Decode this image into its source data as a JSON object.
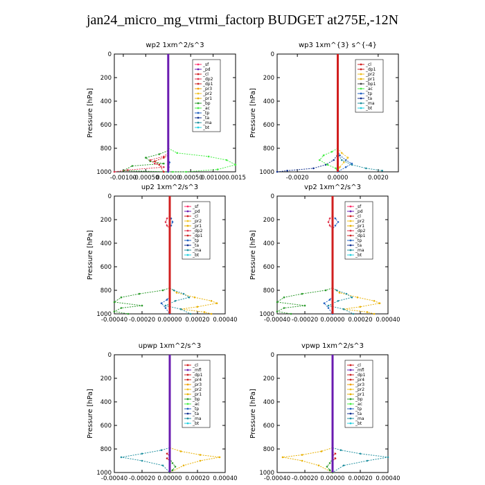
{
  "figure": {
    "title": "jan24_micro_mg_vtrmi_factorp  BUDGET at275E,-12N"
  },
  "colors": {
    "sf": "#ff2b6a",
    "pd": "#6a1bb0",
    "cl": "#d11f1f",
    "mfl": "#6a1bb0",
    "dp1": "#cc2222",
    "dp2": "#e0304a",
    "pr1": "#e8b000",
    "pr2": "#f0c020",
    "pr3": "#f0a000",
    "pr4": "#cc2222",
    "bp": "#2a9a2a",
    "ac": "#44ee44",
    "tp": "#2060c0",
    "ta": "#103090",
    "ma": "#2090a0",
    "bt": "#20d0e0"
  },
  "chart_data": [
    {
      "id": "wp2",
      "type": "line",
      "title": "wp2   1xm^2/s^3",
      "ylabel": "Pressure [hPa]",
      "xlim": [
        -0.0012,
        0.0015
      ],
      "ylim": [
        1000,
        0
      ],
      "xticks": [
        -0.001,
        -0.0005,
        0.0,
        0.0005,
        0.001,
        0.0015
      ],
      "xtick_labels": [
        "-0.00100",
        "-0.00050",
        "0.00000",
        "0.00050",
        "0.00100",
        "0.0015"
      ],
      "yticks": [
        0,
        200,
        400,
        600,
        800,
        1000
      ],
      "legend": [
        "_sf",
        "_pd",
        "_cl",
        "_dp2",
        "_dp1",
        "_pr3",
        "_pr2",
        "_pr1",
        "_bp",
        "_ac",
        "_tp",
        "_ta",
        "_ma",
        "_bt"
      ],
      "series": [
        {
          "key": "ac",
          "x": [
            0,
            0,
            0.0002,
            0.0009,
            0.0013,
            0.0015,
            0.0011,
            0.0004,
            0.0001,
            0
          ],
          "y": [
            760,
            800,
            840,
            870,
            900,
            940,
            980,
            1000,
            1000,
            1000
          ]
        },
        {
          "key": "bp",
          "x": [
            0,
            0,
            -0.0002,
            -0.0005,
            -0.0004,
            -0.0001,
            -0.0008,
            -0.001,
            0
          ],
          "y": [
            780,
            820,
            850,
            880,
            910,
            930,
            950,
            990,
            1000
          ]
        },
        {
          "key": "dp2",
          "x": [
            0,
            0,
            -0.0001,
            -0.0004,
            -0.0003,
            -0.0001,
            -0.0009,
            -0.0012
          ],
          "y": [
            800,
            840,
            870,
            900,
            930,
            960,
            985,
            1000
          ]
        },
        {
          "key": "cl",
          "x": [
            0,
            0,
            -0.0001,
            -0.0003,
            -0.0002,
            -0.0001
          ],
          "y": [
            820,
            860,
            880,
            910,
            940,
            1000
          ]
        },
        {
          "key": "tp",
          "x": [
            0,
            0,
            3e-05,
            1e-05,
            0
          ],
          "y": [
            850,
            880,
            920,
            960,
            1000
          ]
        },
        {
          "key": "pd",
          "x": [
            0,
            0,
            0,
            0
          ],
          "y": [
            0,
            500,
            800,
            1000
          ]
        }
      ]
    },
    {
      "id": "wp3",
      "type": "line",
      "title": "wp3   1xm^{3} s^{-4}",
      "ylabel": "Pressure [hPa]",
      "xlim": [
        -0.003,
        0.003
      ],
      "ylim": [
        1000,
        0
      ],
      "xticks": [
        -0.002,
        0.0,
        0.002
      ],
      "xtick_labels": [
        "-0.0020",
        "0.0000",
        "0.0020"
      ],
      "yticks": [
        0,
        200,
        400,
        600,
        800,
        1000
      ],
      "legend": [
        "_cl",
        "_dp1",
        "_pr2",
        "_pr1",
        "_bp1",
        "_ac",
        "_tp",
        "_ta",
        "_ma",
        "_bt"
      ],
      "series": [
        {
          "key": "ta",
          "x": [
            0,
            0,
            -0.0002,
            -0.0006,
            -0.0012,
            -0.0025,
            -0.003
          ],
          "y": [
            800,
            850,
            900,
            940,
            970,
            990,
            1000
          ]
        },
        {
          "key": "ma",
          "x": [
            0,
            0,
            0.0002,
            0.0007,
            0.0014,
            0.0022
          ],
          "y": [
            800,
            850,
            900,
            940,
            970,
            990
          ]
        },
        {
          "key": "ac",
          "x": [
            0,
            -0.0003,
            -0.0007,
            -0.0009,
            -0.0005,
            -0.0001,
            0
          ],
          "y": [
            800,
            830,
            860,
            900,
            940,
            970,
            1000
          ]
        },
        {
          "key": "pr2",
          "x": [
            0,
            0.0002,
            0.0005,
            0.0003,
            0.0001,
            0
          ],
          "y": [
            800,
            840,
            880,
            920,
            960,
            1000
          ]
        },
        {
          "key": "tp",
          "x": [
            0,
            0.0001,
            0.0004,
            0.0007,
            0.0004,
            0
          ],
          "y": [
            820,
            860,
            900,
            930,
            960,
            1000
          ]
        },
        {
          "key": "cl",
          "x": [
            0,
            0,
            0,
            0
          ],
          "y": [
            0,
            500,
            800,
            1000
          ]
        }
      ]
    },
    {
      "id": "up2",
      "type": "line",
      "title": "up2   1xm^2/s^3",
      "ylabel": "Pressure [hPa]",
      "xlim": [
        -0.0004,
        0.0004
      ],
      "ylim": [
        1000,
        0
      ],
      "xticks": [
        -0.0004,
        -0.0002,
        0.0,
        0.0002,
        0.0004
      ],
      "xtick_labels": [
        "-0.00040",
        "-0.00020",
        "0.00000",
        "0.00020",
        "0.00040"
      ],
      "yticks": [
        0,
        200,
        400,
        600,
        800,
        1000
      ],
      "legend": [
        "_sf",
        "_pd",
        "_cl",
        "_pr2",
        "_pr1",
        "_dp2",
        "_dp1",
        "_tp",
        "_ta",
        "_ma",
        "_bt"
      ],
      "series": [
        {
          "key": "dp2",
          "x": [
            0,
            -2e-05,
            -3e-05,
            -2e-05,
            0
          ],
          "y": [
            170,
            190,
            220,
            250,
            280
          ]
        },
        {
          "key": "tp",
          "x": [
            0,
            1e-05,
            2e-05,
            1e-05,
            0
          ],
          "y": [
            170,
            190,
            220,
            250,
            280
          ]
        },
        {
          "key": "bp",
          "x": [
            0,
            -5e-05,
            -0.00022,
            -0.00035,
            -0.0004,
            -0.0002,
            -0.00035,
            -0.0004,
            -0.0003
          ],
          "y": [
            780,
            800,
            830,
            860,
            900,
            930,
            950,
            980,
            1000
          ]
        },
        {
          "key": "pr1",
          "x": [
            0,
            5e-05,
            0.00018,
            0.0003,
            0.00034,
            0.0002,
            8e-05,
            0.00025,
            0.0003
          ],
          "y": [
            780,
            820,
            860,
            890,
            910,
            940,
            960,
            985,
            1000
          ]
        },
        {
          "key": "ma",
          "x": [
            0,
            3e-05,
            0.0001,
            0.00014,
            4e-05,
            -3e-05,
            8e-05,
            0.00015
          ],
          "y": [
            780,
            800,
            830,
            860,
            890,
            930,
            960,
            1000
          ]
        },
        {
          "key": "tp",
          "x": [
            0,
            -2e-05,
            -6e-05,
            -3e-05,
            0
          ],
          "y": [
            850,
            880,
            910,
            950,
            1000
          ]
        },
        {
          "key": "cl",
          "x": [
            0,
            0,
            0,
            0
          ],
          "y": [
            0,
            500,
            800,
            1000
          ]
        }
      ]
    },
    {
      "id": "vp2",
      "type": "line",
      "title": "vp2   1xm^2/s^3",
      "ylabel": "Pressure [hPa]",
      "xlim": [
        -0.0004,
        0.0004
      ],
      "ylim": [
        1000,
        0
      ],
      "xticks": [
        -0.0004,
        -0.0002,
        0.0,
        0.0002,
        0.0004
      ],
      "xtick_labels": [
        "-0.00040",
        "-0.00020",
        "0.00000",
        "0.00020",
        "0.00040"
      ],
      "yticks": [
        0,
        200,
        400,
        600,
        800,
        1000
      ],
      "legend": [
        "_sf",
        "_pd",
        "_cl",
        "_pr2",
        "_pr1",
        "_dp2",
        "_dp1",
        "_tp",
        "_ta",
        "_ma",
        "_bt"
      ],
      "series": [
        {
          "key": "dp2",
          "x": [
            0,
            -2e-05,
            -3e-05,
            -2e-05,
            0
          ],
          "y": [
            170,
            190,
            220,
            250,
            280
          ]
        },
        {
          "key": "tp",
          "x": [
            0,
            2e-05,
            4e-05,
            2e-05,
            0
          ],
          "y": [
            170,
            190,
            220,
            250,
            280
          ]
        },
        {
          "key": "bp",
          "x": [
            0,
            -5e-05,
            -0.00022,
            -0.00035,
            -0.0004,
            -0.0002,
            -0.00035,
            -0.0004,
            -0.0003
          ],
          "y": [
            780,
            800,
            830,
            860,
            900,
            930,
            950,
            980,
            1000
          ]
        },
        {
          "key": "pr1",
          "x": [
            0,
            5e-05,
            0.00018,
            0.0003,
            0.00034,
            0.0002,
            8e-05,
            0.00025,
            0.0003
          ],
          "y": [
            780,
            820,
            860,
            890,
            910,
            940,
            960,
            985,
            1000
          ]
        },
        {
          "key": "ma",
          "x": [
            0,
            3e-05,
            0.0001,
            0.00014,
            4e-05,
            -3e-05,
            8e-05,
            0.00015
          ],
          "y": [
            780,
            800,
            830,
            860,
            890,
            930,
            960,
            1000
          ]
        },
        {
          "key": "tp",
          "x": [
            0,
            -2e-05,
            -6e-05,
            -3e-05,
            0
          ],
          "y": [
            850,
            880,
            910,
            950,
            1000
          ]
        },
        {
          "key": "cl",
          "x": [
            0,
            0,
            0,
            0
          ],
          "y": [
            0,
            500,
            800,
            1000
          ]
        }
      ]
    },
    {
      "id": "upwp",
      "type": "line",
      "title": "upwp   1xm^2/s^3",
      "ylabel": "Pressure [hPa]",
      "xlim": [
        -0.0004,
        0.0004
      ],
      "ylim": [
        1000,
        0
      ],
      "xticks": [
        -0.0004,
        -0.0002,
        0.0,
        0.0002,
        0.0004
      ],
      "xtick_labels": [
        "-0.00040",
        "-0.00020",
        "0.00000",
        "0.00020",
        "0.00040"
      ],
      "yticks": [
        0,
        200,
        400,
        600,
        800,
        1000
      ],
      "legend": [
        "_cl",
        "_mfl",
        "_dp1",
        "_pr4",
        "_pr3",
        "_pr2",
        "_pr1",
        "_bp",
        "_ac",
        "_tp",
        "_ta",
        "_ma",
        "_bt"
      ],
      "series": [
        {
          "key": "ma",
          "x": [
            0,
            -6e-05,
            -0.0002,
            -0.00035,
            -0.0002,
            -5e-05,
            0
          ],
          "y": [
            790,
            810,
            840,
            870,
            900,
            940,
            1000
          ]
        },
        {
          "key": "pr1",
          "x": [
            0,
            8e-05,
            0.00022,
            0.00036,
            0.00022,
            0.0001,
            0
          ],
          "y": [
            790,
            820,
            850,
            870,
            900,
            940,
            1000
          ]
        },
        {
          "key": "bp",
          "x": [
            0,
            2e-05,
            4e-05,
            2e-05,
            0
          ],
          "y": [
            880,
            920,
            950,
            980,
            1000
          ]
        },
        {
          "key": "cl",
          "x": [
            0,
            -2e-05,
            0,
            -2e-05,
            0
          ],
          "y": [
            820,
            840,
            860,
            880,
            900
          ]
        },
        {
          "key": "pd",
          "x": [
            0,
            0,
            0,
            0
          ],
          "y": [
            0,
            500,
            800,
            1000
          ]
        }
      ]
    },
    {
      "id": "vpwp",
      "type": "line",
      "title": "vpwp   1xm^2/s^3",
      "ylabel": "Pressure [hPa]",
      "xlim": [
        -0.0004,
        0.0004
      ],
      "ylim": [
        1000,
        0
      ],
      "xticks": [
        -0.0004,
        -0.0002,
        0.0,
        0.0002,
        0.0004
      ],
      "xtick_labels": [
        "-0.00040",
        "-0.00020",
        "0.00000",
        "0.00020",
        "0.00040"
      ],
      "yticks": [
        0,
        200,
        400,
        600,
        800,
        1000
      ],
      "legend": [
        "_cl",
        "_mfl",
        "_dp1",
        "_pr4",
        "_pr3",
        "_pr2",
        "_pr1",
        "_bp",
        "_ac",
        "_tp",
        "_ta",
        "_ma",
        "_bt"
      ],
      "series": [
        {
          "key": "ma",
          "x": [
            0,
            6e-05,
            0.0002,
            0.0004,
            0.00025,
            8e-05,
            0
          ],
          "y": [
            790,
            810,
            840,
            870,
            900,
            940,
            1000
          ]
        },
        {
          "key": "pr1",
          "x": [
            0,
            -8e-05,
            -0.00022,
            -0.00036,
            -0.00022,
            -0.0001,
            0
          ],
          "y": [
            790,
            820,
            850,
            870,
            900,
            940,
            1000
          ]
        },
        {
          "key": "bp",
          "x": [
            0,
            -2e-05,
            -4e-05,
            -2e-05,
            0
          ],
          "y": [
            880,
            920,
            950,
            980,
            1000
          ]
        },
        {
          "key": "cl",
          "x": [
            0,
            2e-05,
            0,
            2e-05,
            0
          ],
          "y": [
            820,
            840,
            860,
            880,
            900
          ]
        },
        {
          "key": "pd",
          "x": [
            0,
            0,
            0,
            0
          ],
          "y": [
            0,
            500,
            800,
            1000
          ]
        }
      ]
    }
  ]
}
